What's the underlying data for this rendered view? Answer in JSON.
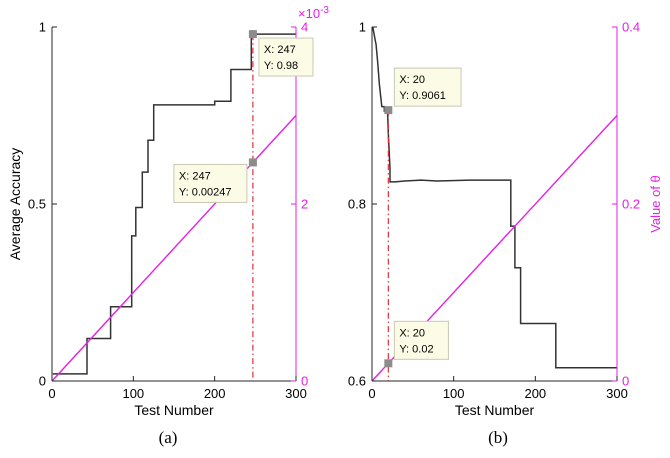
{
  "chart_data": [
    {
      "type": "line",
      "panel_label": "(a)",
      "xlabel": "Test Number",
      "ylabel": "Average Accuracy",
      "xlim": [
        0,
        300
      ],
      "ylim": [
        0,
        1
      ],
      "xticks": [
        0,
        100,
        200,
        300
      ],
      "yticks": [
        0,
        0.5,
        1
      ],
      "ytick_labels": [
        "0",
        "0.5",
        "1"
      ],
      "y2lim": [
        0,
        0.004
      ],
      "y2ticks": [
        0,
        0.002,
        0.004
      ],
      "y2tick_labels": [
        "0",
        "2",
        "4"
      ],
      "y2_exponent_label": "×10",
      "y2_exponent_power": "-3",
      "y2label": "",
      "series": [
        {
          "axis": "left",
          "color": "#333333",
          "step": true,
          "x": [
            1,
            43,
            43,
            72,
            72,
            98,
            98,
            103,
            103,
            111,
            111,
            118,
            118,
            125,
            125,
            130,
            130,
            176,
            176,
            200,
            200,
            220,
            220,
            245,
            245,
            300
          ],
          "y": [
            0.02,
            0.02,
            0.12,
            0.12,
            0.21,
            0.21,
            0.41,
            0.41,
            0.49,
            0.49,
            0.59,
            0.59,
            0.68,
            0.68,
            0.78,
            0.78,
            0.78,
            0.78,
            0.78,
            0.78,
            0.79,
            0.79,
            0.88,
            0.88,
            0.98,
            0.98
          ]
        },
        {
          "axis": "right",
          "color": "#e61ee6",
          "x": [
            0,
            300
          ],
          "y": [
            0,
            0.003
          ]
        }
      ],
      "marker_line": {
        "x": 247,
        "color": "#e0303a"
      },
      "datatips": [
        {
          "axis": "left",
          "x": 247,
          "y": 0.98,
          "lines": [
            "X: 247",
            "Y: 0.98"
          ],
          "box_anchor": "lower-right"
        },
        {
          "axis": "right",
          "x": 247,
          "y": 0.00247,
          "lines": [
            "X: 247",
            "Y: 0.00247"
          ],
          "box_anchor": "lower-left"
        }
      ]
    },
    {
      "type": "line",
      "panel_label": "(b)",
      "xlabel": "Test Number",
      "ylabel": "",
      "xlim": [
        0,
        300
      ],
      "ylim": [
        0.6,
        1
      ],
      "xticks": [
        0,
        100,
        200,
        300
      ],
      "yticks": [
        0.6,
        0.8,
        1
      ],
      "ytick_labels": [
        "0.6",
        "0.8",
        "1"
      ],
      "y2lim": [
        0,
        0.4
      ],
      "y2ticks": [
        0,
        0.2,
        0.4
      ],
      "y2tick_labels": [
        "0",
        "0.2",
        "0.4"
      ],
      "y2label": "Value of θ",
      "series": [
        {
          "axis": "left",
          "color": "#333333",
          "step": true,
          "x": [
            1,
            3,
            5,
            7,
            9,
            12,
            15,
            15,
            19,
            19,
            20,
            22,
            22,
            28,
            40,
            60,
            80,
            120,
            170,
            170,
            175,
            175,
            182,
            182,
            225,
            225,
            300
          ],
          "y": [
            1.0,
            0.99,
            0.98,
            0.96,
            0.935,
            0.91,
            0.91,
            0.905,
            0.905,
            0.9061,
            0.88,
            0.84,
            0.825,
            0.825,
            0.826,
            0.827,
            0.826,
            0.827,
            0.827,
            0.775,
            0.775,
            0.728,
            0.728,
            0.665,
            0.665,
            0.615,
            0.615
          ]
        },
        {
          "axis": "right",
          "color": "#e61ee6",
          "x": [
            0,
            300
          ],
          "y": [
            0,
            0.3
          ]
        }
      ],
      "marker_line": {
        "x": 20,
        "color": "#e0303a"
      },
      "datatips": [
        {
          "axis": "left",
          "x": 20,
          "y": 0.9061,
          "lines": [
            "X: 20",
            "Y: 0.9061"
          ],
          "box_anchor": "upper-right"
        },
        {
          "axis": "right",
          "x": 20,
          "y": 0.02,
          "lines": [
            "X: 20",
            "Y: 0.02"
          ],
          "box_anchor": "upper-right"
        }
      ]
    }
  ]
}
